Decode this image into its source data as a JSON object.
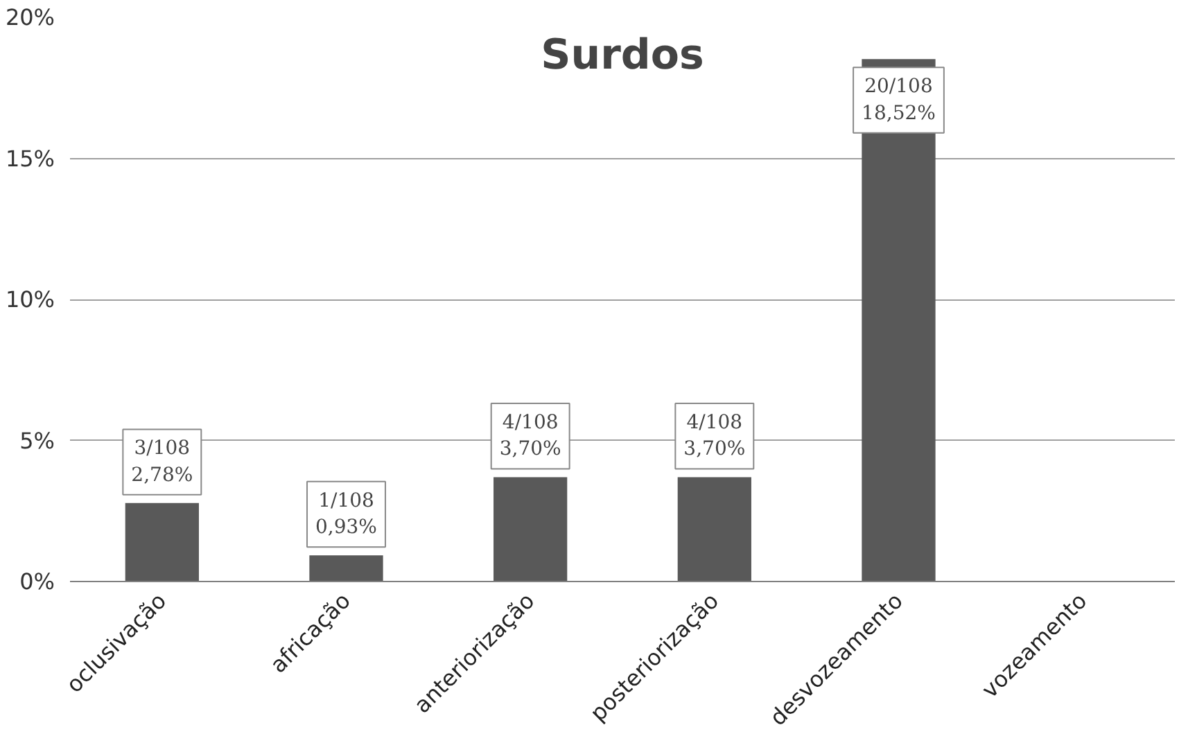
{
  "chart_data": {
    "type": "bar",
    "title": "Surdos",
    "categories": [
      "oclusivação",
      "africação",
      "anteriorização",
      "posteriorização",
      "desvozeamento",
      "vozeamento"
    ],
    "values": [
      2.78,
      0.93,
      3.7,
      3.7,
      18.52,
      0
    ],
    "value_labels": [
      "3/108\n2,78%",
      "1/108\n0,93%",
      "4/108\n3,70%",
      "4/108\n3,70%",
      "20/108\n18,52%",
      null
    ],
    "color": "#595959",
    "ylim": [
      0,
      20
    ],
    "yticks": [
      {
        "value": 0,
        "label": "0%"
      },
      {
        "value": 5,
        "label": "5%"
      },
      {
        "value": 10,
        "label": "10%"
      },
      {
        "value": 15,
        "label": "15%"
      },
      {
        "value": 20,
        "label": "20%"
      }
    ],
    "grid": "y"
  }
}
